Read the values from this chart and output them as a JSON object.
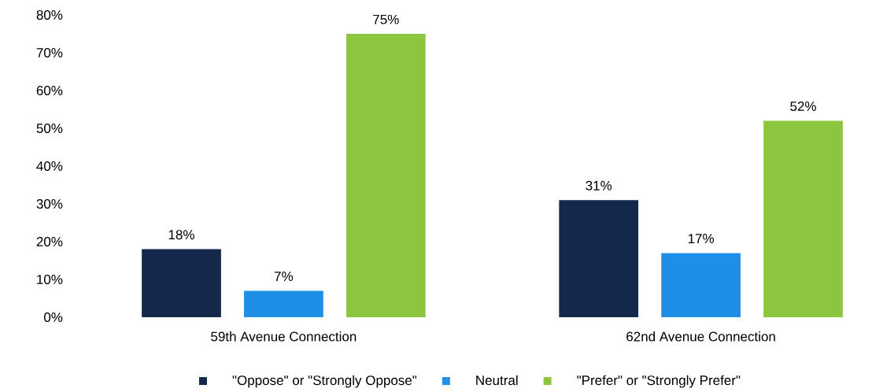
{
  "chart_data": {
    "type": "bar",
    "categories": [
      "59th Avenue Connection",
      "62nd Avenue Connection"
    ],
    "series": [
      {
        "name": "\"Oppose\" or \"Strongly Oppose\"",
        "color": "#14284b",
        "values": [
          18,
          31
        ],
        "value_labels": [
          "18%",
          "31%"
        ]
      },
      {
        "name": "Neutral",
        "color": "#1f8ee6",
        "values": [
          7,
          17
        ],
        "value_labels": [
          "7%",
          "17%"
        ]
      },
      {
        "name": "\"Prefer\" or \"Strongly Prefer\"",
        "color": "#8cc63f",
        "values": [
          75,
          52
        ],
        "value_labels": [
          "75%",
          "52%"
        ]
      }
    ],
    "ylim": [
      0,
      80
    ],
    "yticks": [
      {
        "value": 0,
        "label": "0%"
      },
      {
        "value": 10,
        "label": "10%"
      },
      {
        "value": 20,
        "label": "20%"
      },
      {
        "value": 30,
        "label": "30%"
      },
      {
        "value": 40,
        "label": "40%"
      },
      {
        "value": 50,
        "label": "50%"
      },
      {
        "value": 60,
        "label": "60%"
      },
      {
        "value": 70,
        "label": "70%"
      },
      {
        "value": 80,
        "label": "80%"
      }
    ],
    "grid": false,
    "legend": "bottom"
  }
}
